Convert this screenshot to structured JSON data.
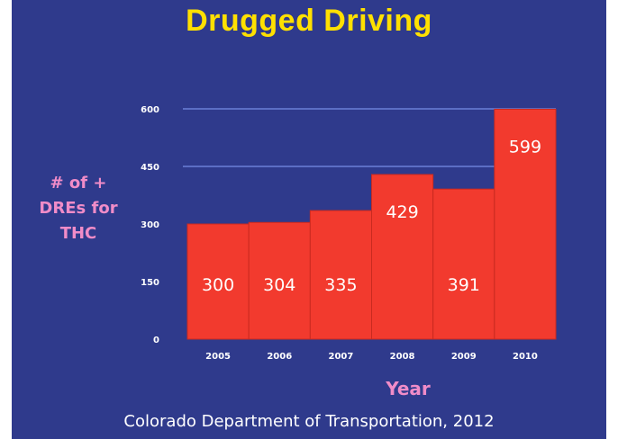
{
  "slide": {
    "source": "Colorado Department of Transportation, 2012",
    "background_color": "#2f3a8c"
  },
  "chart_data": {
    "type": "bar",
    "title": "Drugged Driving",
    "xlabel": "Year",
    "ylabel_lines": [
      "# of +",
      "DREs for",
      "THC"
    ],
    "categories": [
      "2005",
      "2006",
      "2007",
      "2008",
      "2009",
      "2010"
    ],
    "values": [
      300,
      304,
      335,
      429,
      391,
      599
    ],
    "data_labels": [
      "300",
      "304",
      "335",
      "429",
      "391",
      "599"
    ],
    "yticks": [
      0,
      150,
      300,
      450,
      600
    ],
    "ylim": [
      0,
      600
    ],
    "gridlines": [
      450,
      600
    ],
    "grid": true,
    "bar_color": "#f23a2e",
    "grid_color": "#6b7fd6",
    "title_color": "#ffe000",
    "label_color": "#f08cc8"
  }
}
